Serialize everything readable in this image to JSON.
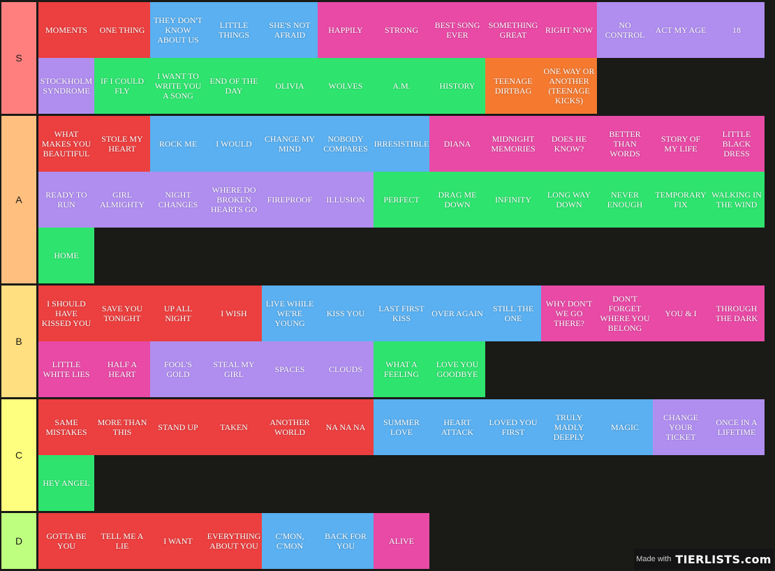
{
  "colors": {
    "red": "#ec3f3f",
    "blue": "#5ab0f0",
    "pink": "#e84aa6",
    "purple": "#b08ef0",
    "green": "#2ee46e",
    "orange": "#f57a30"
  },
  "tiers": [
    {
      "label": "S",
      "color": "#ff7f7f",
      "items": [
        {
          "text": "MOMENTS",
          "color": "red"
        },
        {
          "text": "ONE THING",
          "color": "red"
        },
        {
          "text": "THEY DON'T KNOW ABOUT US",
          "color": "blue"
        },
        {
          "text": "LITTLE THINGS",
          "color": "blue"
        },
        {
          "text": "SHE'S NOT AFRAID",
          "color": "blue"
        },
        {
          "text": "HAPPILY",
          "color": "pink"
        },
        {
          "text": "STRONG",
          "color": "pink"
        },
        {
          "text": "BEST SONG EVER",
          "color": "pink"
        },
        {
          "text": "SOMETHING GREAT",
          "color": "pink"
        },
        {
          "text": "RIGHT NOW",
          "color": "pink"
        },
        {
          "text": "NO CONTROL",
          "color": "purple"
        },
        {
          "text": "ACT MY AGE",
          "color": "purple"
        },
        {
          "text": "18",
          "color": "purple"
        },
        {
          "text": "STOCKHOLM SYNDROME",
          "color": "purple"
        },
        {
          "text": "IF I COULD FLY",
          "color": "green"
        },
        {
          "text": "I WANT TO WRITE YOU A SONG",
          "color": "green"
        },
        {
          "text": "END OF THE DAY",
          "color": "green"
        },
        {
          "text": "OLIVIA",
          "color": "green"
        },
        {
          "text": "WOLVES",
          "color": "green"
        },
        {
          "text": "A.M.",
          "color": "green"
        },
        {
          "text": "HISTORY",
          "color": "green"
        },
        {
          "text": "TEENAGE DIRTBAG",
          "color": "orange"
        },
        {
          "text": "ONE WAY OR ANOTHER (TEENAGE KICKS)",
          "color": "orange"
        }
      ]
    },
    {
      "label": "A",
      "color": "#ffbf7f",
      "items": [
        {
          "text": "WHAT MAKES YOU BEAUTIFUL",
          "color": "red"
        },
        {
          "text": "STOLE MY HEART",
          "color": "red"
        },
        {
          "text": "ROCK ME",
          "color": "blue"
        },
        {
          "text": "I WOULD",
          "color": "blue"
        },
        {
          "text": "CHANGE MY MIND",
          "color": "blue"
        },
        {
          "text": "NOBODY COMPARES",
          "color": "blue"
        },
        {
          "text": "IRRESISTIBLE",
          "color": "blue"
        },
        {
          "text": "DIANA",
          "color": "pink"
        },
        {
          "text": "MIDNIGHT MEMORIES",
          "color": "pink"
        },
        {
          "text": "DOES HE KNOW?",
          "color": "pink"
        },
        {
          "text": "BETTER THAN WORDS",
          "color": "pink"
        },
        {
          "text": "STORY OF MY LIFE",
          "color": "pink"
        },
        {
          "text": "LITTLE BLACK DRESS",
          "color": "pink"
        },
        {
          "text": "READY TO RUN",
          "color": "purple"
        },
        {
          "text": "GIRL ALMIGHTY",
          "color": "purple"
        },
        {
          "text": "NIGHT CHANGES",
          "color": "purple"
        },
        {
          "text": "WHERE DO BROKEN HEARTS GO",
          "color": "purple"
        },
        {
          "text": "FIREPROOF",
          "color": "purple"
        },
        {
          "text": "ILLUSION",
          "color": "purple"
        },
        {
          "text": "PERFECT",
          "color": "green"
        },
        {
          "text": "DRAG ME DOWN",
          "color": "green"
        },
        {
          "text": "INFINITY",
          "color": "green"
        },
        {
          "text": "LONG WAY DOWN",
          "color": "green"
        },
        {
          "text": "NEVER ENOUGH",
          "color": "green"
        },
        {
          "text": "TEMPORARY FIX",
          "color": "green"
        },
        {
          "text": "WALKING IN THE WIND",
          "color": "green"
        },
        {
          "text": "HOME",
          "color": "green"
        }
      ]
    },
    {
      "label": "B",
      "color": "#ffdf7f",
      "items": [
        {
          "text": "I SHOULD HAVE KISSED YOU",
          "color": "red"
        },
        {
          "text": "SAVE YOU TONIGHT",
          "color": "red"
        },
        {
          "text": "UP ALL NIGHT",
          "color": "red"
        },
        {
          "text": "I WISH",
          "color": "red"
        },
        {
          "text": "LIVE WHILE WE'RE YOUNG",
          "color": "blue"
        },
        {
          "text": "KISS YOU",
          "color": "blue"
        },
        {
          "text": "LAST FIRST KISS",
          "color": "blue"
        },
        {
          "text": "OVER AGAIN",
          "color": "blue"
        },
        {
          "text": "STILL THE ONE",
          "color": "blue"
        },
        {
          "text": "WHY DON'T WE GO THERE?",
          "color": "pink"
        },
        {
          "text": "DON'T FORGET WHERE YOU BELONG",
          "color": "pink"
        },
        {
          "text": "YOU & I",
          "color": "pink"
        },
        {
          "text": "THROUGH THE DARK",
          "color": "pink"
        },
        {
          "text": "LITTLE WHITE LIES",
          "color": "pink"
        },
        {
          "text": "HALF A HEART",
          "color": "pink"
        },
        {
          "text": "FOOL'S GOLD",
          "color": "purple"
        },
        {
          "text": "STEAL MY GIRL",
          "color": "purple"
        },
        {
          "text": "SPACES",
          "color": "purple"
        },
        {
          "text": "CLOUDS",
          "color": "purple"
        },
        {
          "text": "WHAT A FEELING",
          "color": "green"
        },
        {
          "text": "LOVE YOU GOODBYE",
          "color": "green"
        }
      ]
    },
    {
      "label": "C",
      "color": "#ffff7f",
      "items": [
        {
          "text": "SAME MISTAKES",
          "color": "red"
        },
        {
          "text": "MORE THAN THIS",
          "color": "red"
        },
        {
          "text": "STAND UP",
          "color": "red"
        },
        {
          "text": "TAKEN",
          "color": "red"
        },
        {
          "text": "ANOTHER WORLD",
          "color": "red"
        },
        {
          "text": "NA NA NA",
          "color": "red"
        },
        {
          "text": "SUMMER LOVE",
          "color": "blue"
        },
        {
          "text": "HEART ATTACK",
          "color": "blue"
        },
        {
          "text": "LOVED YOU FIRST",
          "color": "blue"
        },
        {
          "text": "TRULY MADLY DEEPLY",
          "color": "blue"
        },
        {
          "text": "MAGIC",
          "color": "blue"
        },
        {
          "text": "CHANGE YOUR TICKET",
          "color": "purple"
        },
        {
          "text": "ONCE IN A LIFETIME",
          "color": "purple"
        },
        {
          "text": "HEY ANGEL",
          "color": "green"
        }
      ]
    },
    {
      "label": "D",
      "color": "#bfff7f",
      "items": [
        {
          "text": "GOTTA BE YOU",
          "color": "red"
        },
        {
          "text": "TELL ME A LIE",
          "color": "red"
        },
        {
          "text": "I WANT",
          "color": "red"
        },
        {
          "text": "EVERYTHING ABOUT YOU",
          "color": "red"
        },
        {
          "text": "C'MON, C'MON",
          "color": "blue"
        },
        {
          "text": "BACK FOR YOU",
          "color": "blue"
        },
        {
          "text": "ALIVE",
          "color": "pink"
        }
      ]
    }
  ],
  "watermark": {
    "made_with": "Made with",
    "brand": "TIERLISTS.com"
  }
}
